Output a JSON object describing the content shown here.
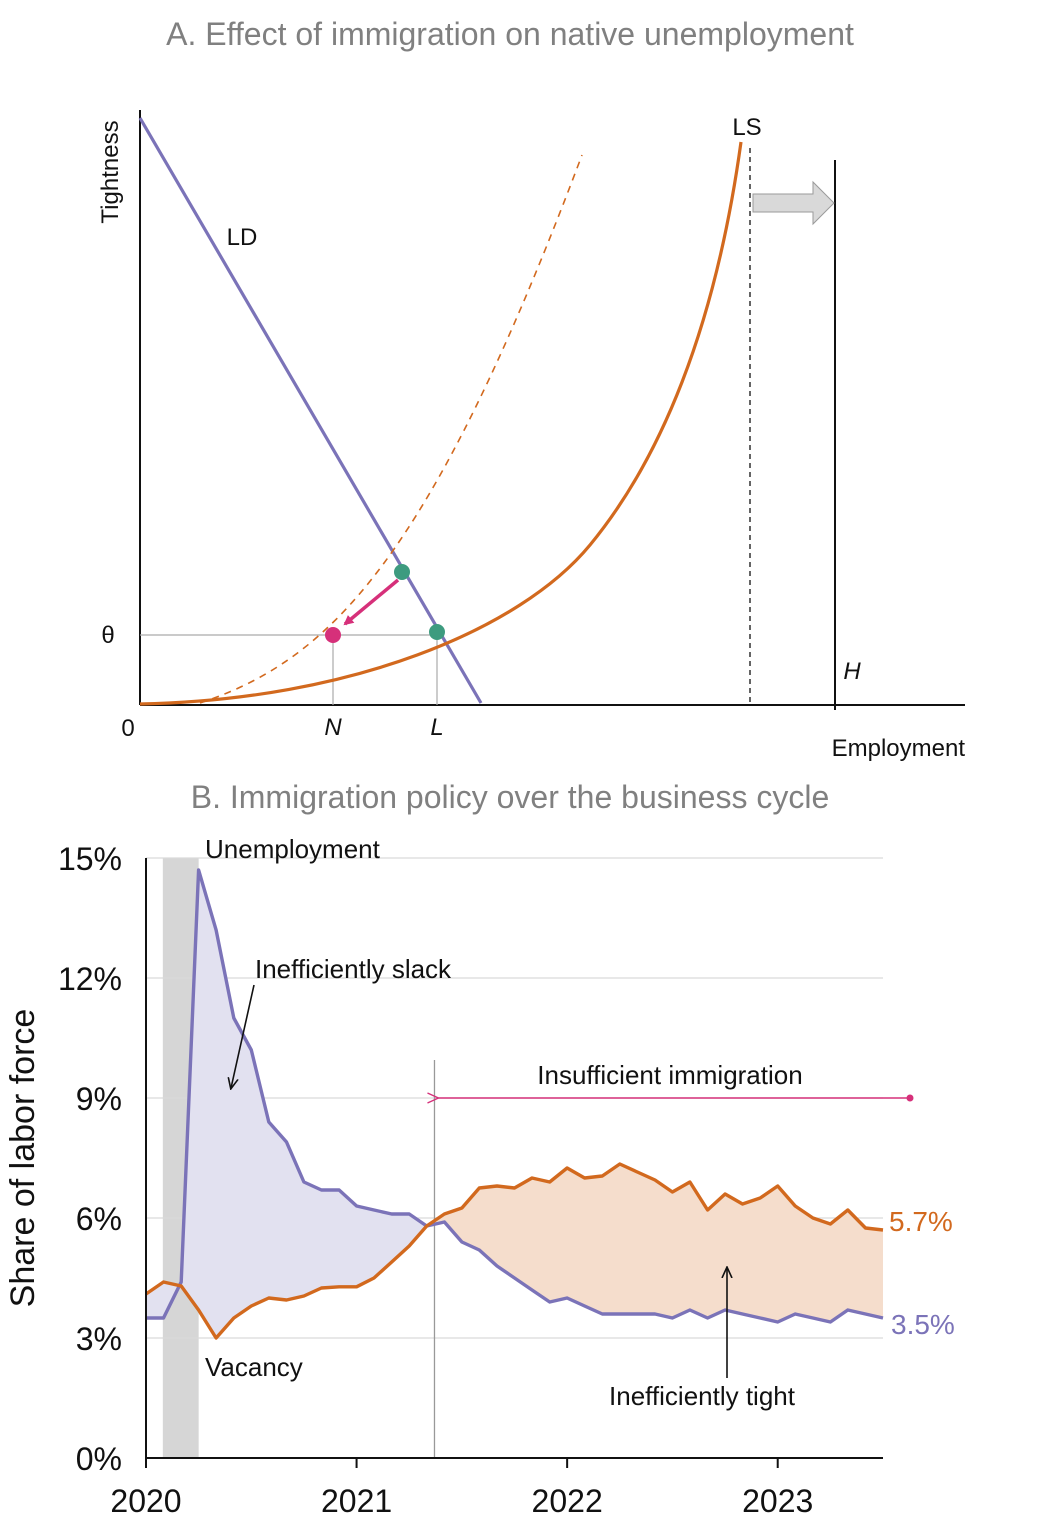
{
  "chart_data": [
    {
      "type": "line",
      "title": "A. Effect of immigration on native unemployment",
      "ylabel": "Tightness",
      "xlabel": "Employment",
      "origin_label": "0",
      "theta_label": "θ",
      "curve_labels": {
        "ld": "LD",
        "ls": "LS"
      },
      "tick_labels": {
        "n": "N",
        "l": "L",
        "h": "H"
      },
      "colors": {
        "ld": "#7b73b8",
        "ls": "#d2691e",
        "equilibrium_point": "#3d9b7f",
        "new_point": "#d6307a",
        "arrow": "#d6307a",
        "shift_arrow": "#d9d9d9"
      }
    },
    {
      "type": "line",
      "title": "B. Immigration policy over the business cycle",
      "ylabel": "Share of labor force",
      "ylim": [
        0,
        15
      ],
      "yticks": [
        0,
        3,
        6,
        9,
        12,
        15
      ],
      "ytick_labels": [
        "0%",
        "3%",
        "6%",
        "9%",
        "12%",
        "15%"
      ],
      "xticks": [
        2020,
        2021,
        2022,
        2023
      ],
      "xtick_labels": [
        "2020",
        "2021",
        "2022",
        "2023"
      ],
      "grid": "horizontal",
      "recession_shading": [
        2020.08,
        2020.25
      ],
      "policy_marker_x": 2021.37,
      "annotations": {
        "unemployment": "Unemployment",
        "vacancy": "Vacancy",
        "slack": "Inefficiently slack",
        "tight": "Inefficiently tight",
        "insufficient": "Insufficient immigration"
      },
      "end_labels": {
        "vacancy": "5.7%",
        "unemployment": "3.5%"
      },
      "colors": {
        "unemployment": "#7b73b8",
        "vacancy": "#d2691e",
        "slack_fill": "#e2e1f0",
        "tight_fill": "#f5ddcc",
        "recession": "#d6d6d6",
        "policy_arrow": "#d6307a",
        "grid": "#d9d9d9"
      },
      "series": [
        {
          "name": "Unemployment",
          "x": [
            2020.0,
            2020.083,
            2020.167,
            2020.25,
            2020.333,
            2020.417,
            2020.5,
            2020.583,
            2020.667,
            2020.75,
            2020.833,
            2020.917,
            2021.0,
            2021.083,
            2021.167,
            2021.25,
            2021.333,
            2021.417,
            2021.5,
            2021.583,
            2021.667,
            2021.75,
            2021.833,
            2021.917,
            2022.0,
            2022.083,
            2022.167,
            2022.25,
            2022.333,
            2022.417,
            2022.5,
            2022.583,
            2022.667,
            2022.75,
            2022.833,
            2022.917,
            2023.0,
            2023.083,
            2023.167,
            2023.25,
            2023.333,
            2023.417,
            2023.5
          ],
          "values": [
            3.5,
            3.5,
            4.4,
            14.7,
            13.2,
            11.0,
            10.2,
            8.4,
            7.9,
            6.9,
            6.7,
            6.7,
            6.3,
            6.2,
            6.1,
            6.1,
            5.8,
            5.9,
            5.4,
            5.2,
            4.8,
            4.5,
            4.2,
            3.9,
            4.0,
            3.8,
            3.6,
            3.6,
            3.6,
            3.6,
            3.5,
            3.7,
            3.5,
            3.7,
            3.6,
            3.5,
            3.4,
            3.6,
            3.5,
            3.4,
            3.7,
            3.6,
            3.5
          ]
        },
        {
          "name": "Vacancy",
          "x": [
            2020.0,
            2020.083,
            2020.167,
            2020.25,
            2020.333,
            2020.417,
            2020.5,
            2020.583,
            2020.667,
            2020.75,
            2020.833,
            2020.917,
            2021.0,
            2021.083,
            2021.167,
            2021.25,
            2021.333,
            2021.417,
            2021.5,
            2021.583,
            2021.667,
            2021.75,
            2021.833,
            2021.917,
            2022.0,
            2022.083,
            2022.167,
            2022.25,
            2022.333,
            2022.417,
            2022.5,
            2022.583,
            2022.667,
            2022.75,
            2022.833,
            2022.917,
            2023.0,
            2023.083,
            2023.167,
            2023.25,
            2023.333,
            2023.417,
            2023.5
          ],
          "values": [
            4.1,
            4.4,
            4.3,
            3.7,
            3.0,
            3.5,
            3.8,
            4.0,
            3.95,
            4.05,
            4.25,
            4.28,
            4.28,
            4.5,
            4.9,
            5.3,
            5.8,
            6.1,
            6.25,
            6.75,
            6.8,
            6.75,
            7.0,
            6.9,
            7.25,
            7.0,
            7.05,
            7.35,
            7.15,
            6.95,
            6.65,
            6.9,
            6.2,
            6.6,
            6.35,
            6.5,
            6.8,
            6.3,
            6.0,
            5.85,
            6.2,
            5.75,
            5.7
          ]
        }
      ]
    }
  ]
}
